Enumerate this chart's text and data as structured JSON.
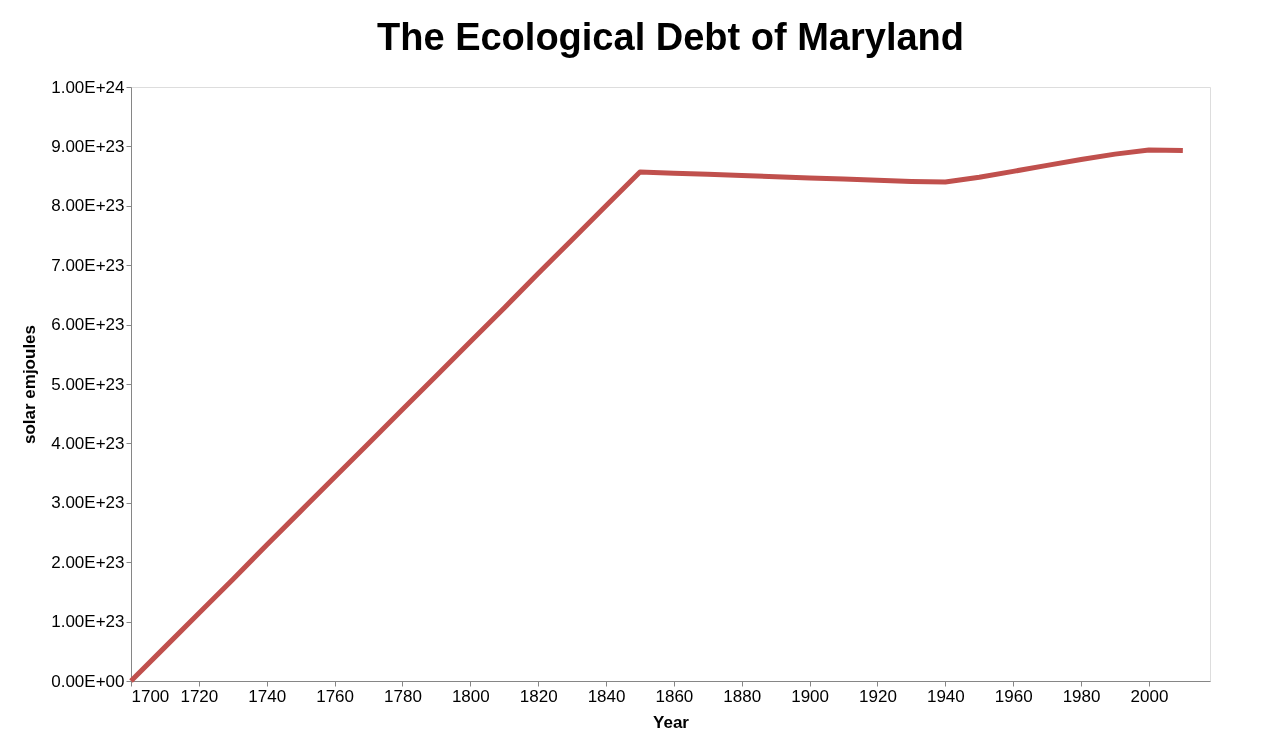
{
  "chart_data": {
    "type": "line",
    "title": "The Ecological Debt of Maryland",
    "xlabel": "Year",
    "ylabel": "solar emjoules",
    "x": [
      1700,
      1710,
      1720,
      1730,
      1740,
      1750,
      1760,
      1770,
      1780,
      1790,
      1800,
      1810,
      1820,
      1830,
      1840,
      1850,
      1860,
      1870,
      1880,
      1890,
      1900,
      1910,
      1920,
      1930,
      1940,
      1950,
      1960,
      1970,
      1980,
      1990,
      2000,
      2010
    ],
    "series": [
      {
        "color": "#c0504d",
        "values": [
          0,
          5.7e+22,
          1.14e+23,
          1.71e+23,
          2.29e+23,
          2.86e+23,
          3.43e+23,
          4e+23,
          4.57e+23,
          5.14e+23,
          5.71e+23,
          6.28e+23,
          6.86e+23,
          7.43e+23,
          8e+23,
          8.57e+23,
          8.55e+23,
          8.53e+23,
          8.51e+23,
          8.49e+23,
          8.47e+23,
          8.45e+23,
          8.43e+23,
          8.41e+23,
          8.4e+23,
          8.48e+23,
          8.58e+23,
          8.68e+23,
          8.78e+23,
          8.87e+23,
          8.94e+23,
          8.93e+23
        ]
      }
    ],
    "xlim": [
      1700,
      2018
    ],
    "xticks": [
      1700,
      1720,
      1740,
      1760,
      1780,
      1800,
      1820,
      1840,
      1860,
      1880,
      1900,
      1920,
      1940,
      1960,
      1980,
      2000
    ],
    "ylim": [
      0,
      1e+24
    ],
    "yticks": [
      {
        "value": 0,
        "label": "0.00E+00"
      },
      {
        "value": 1e+23,
        "label": "1.00E+23"
      },
      {
        "value": 2e+23,
        "label": "2.00E+23"
      },
      {
        "value": 3e+23,
        "label": "3.00E+23"
      },
      {
        "value": 4e+23,
        "label": "4.00E+23"
      },
      {
        "value": 5e+23,
        "label": "5.00E+23"
      },
      {
        "value": 6e+23,
        "label": "6.00E+23"
      },
      {
        "value": 7e+23,
        "label": "7.00E+23"
      },
      {
        "value": 8e+23,
        "label": "8.00E+23"
      },
      {
        "value": 9e+23,
        "label": "9.00E+23"
      },
      {
        "value": 1e+24,
        "label": "1.00E+24"
      }
    ],
    "grid": false,
    "marker": "none",
    "line_style": "solid"
  }
}
